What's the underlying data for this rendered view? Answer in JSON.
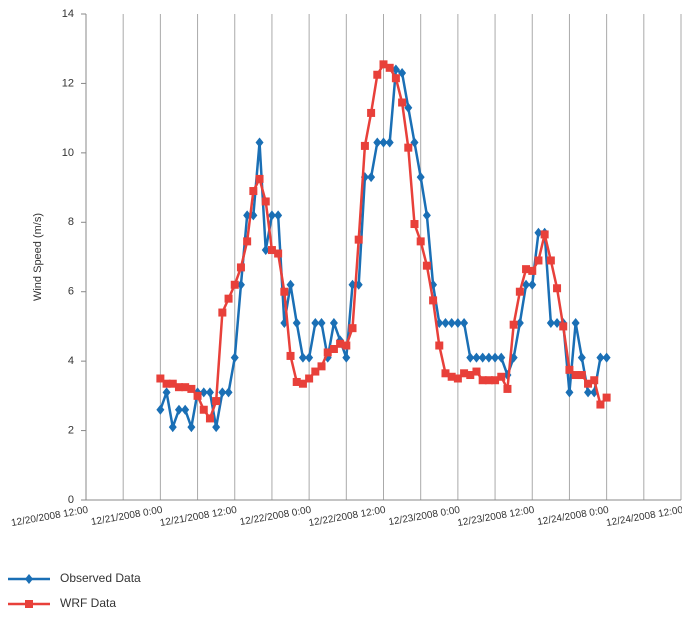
{
  "chart_data": {
    "type": "line",
    "y_label": "Wind Speed (m/s)",
    "x": [
      12,
      13,
      14,
      15,
      16,
      17,
      18,
      19,
      20,
      21,
      22,
      23,
      24,
      25,
      26,
      27,
      28,
      29,
      30,
      31,
      32,
      33,
      34,
      35,
      36,
      37,
      38,
      39,
      40,
      41,
      42,
      43,
      44,
      45,
      46,
      47,
      48,
      49,
      50,
      51,
      52,
      53,
      54,
      55,
      56,
      57,
      58,
      59,
      60,
      61,
      62,
      63,
      64,
      65,
      66,
      67,
      68,
      69,
      70,
      71,
      72,
      73,
      74,
      75,
      76,
      77,
      78,
      79,
      80,
      81,
      82,
      83,
      84
    ],
    "series": [
      {
        "name": "Observed Data",
        "color": "#1a6fb5",
        "marker": "diamond",
        "values": [
          2.6,
          3.1,
          2.1,
          2.6,
          2.6,
          2.1,
          3.1,
          3.1,
          3.1,
          2.1,
          3.1,
          3.1,
          4.1,
          6.2,
          8.2,
          8.2,
          10.3,
          7.2,
          8.2,
          8.2,
          5.1,
          6.2,
          5.1,
          4.1,
          4.1,
          5.1,
          5.1,
          4.1,
          5.1,
          4.6,
          4.1,
          6.2,
          6.2,
          9.3,
          9.3,
          10.3,
          10.3,
          10.3,
          12.4,
          12.3,
          11.3,
          10.3,
          9.3,
          8.2,
          6.2,
          5.1,
          5.1,
          5.1,
          5.1,
          5.1,
          4.1,
          4.1,
          4.1,
          4.1,
          4.1,
          4.1,
          3.6,
          4.1,
          5.1,
          6.2,
          6.2,
          7.7,
          7.7,
          5.1,
          5.1,
          5.1,
          3.1,
          5.1,
          4.1,
          3.1,
          3.1,
          4.1,
          4.1
        ]
      },
      {
        "name": "WRF Data",
        "color": "#e8403a",
        "marker": "square",
        "values": [
          3.5,
          3.35,
          3.35,
          3.25,
          3.25,
          3.2,
          3.0,
          2.6,
          2.35,
          2.85,
          5.4,
          5.8,
          6.2,
          6.7,
          7.45,
          8.9,
          9.25,
          8.6,
          7.2,
          7.1,
          6.0,
          4.15,
          3.4,
          3.35,
          3.5,
          3.7,
          3.85,
          4.25,
          4.35,
          4.5,
          4.45,
          4.95,
          7.5,
          10.2,
          11.15,
          12.25,
          12.55,
          12.45,
          12.15,
          11.45,
          10.15,
          7.95,
          7.45,
          6.75,
          5.75,
          4.45,
          3.65,
          3.55,
          3.5,
          3.65,
          3.6,
          3.7,
          3.45,
          3.45,
          3.45,
          3.55,
          3.2,
          5.05,
          6.0,
          6.65,
          6.6,
          6.9,
          7.65,
          6.9,
          6.1,
          5.0,
          3.75,
          3.6,
          3.6,
          3.35,
          3.45,
          2.75,
          2.95
        ]
      }
    ],
    "xlim": [
      0,
      96
    ],
    "xticks": [
      {
        "value": 0,
        "label": "12/20/2008 12:00"
      },
      {
        "value": 12,
        "label": "12/21/2008 0:00"
      },
      {
        "value": 24,
        "label": "12/21/2008 12:00"
      },
      {
        "value": 36,
        "label": "12/22/2008 0:00"
      },
      {
        "value": 48,
        "label": "12/22/2008 12:00"
      },
      {
        "value": 60,
        "label": "12/23/2008 0:00"
      },
      {
        "value": 72,
        "label": "12/23/2008 12:00"
      },
      {
        "value": 84,
        "label": "12/24/2008 0:00"
      },
      {
        "value": 96,
        "label": "12/24/2008 12:00"
      }
    ],
    "x_minor_grid": [
      6,
      18,
      30,
      42,
      54,
      66,
      78,
      90
    ],
    "ylim": [
      0,
      14
    ],
    "yticks": [
      0,
      2,
      4,
      6,
      8,
      10,
      12,
      14
    ],
    "grid": "x",
    "legend": "bottom-left"
  }
}
